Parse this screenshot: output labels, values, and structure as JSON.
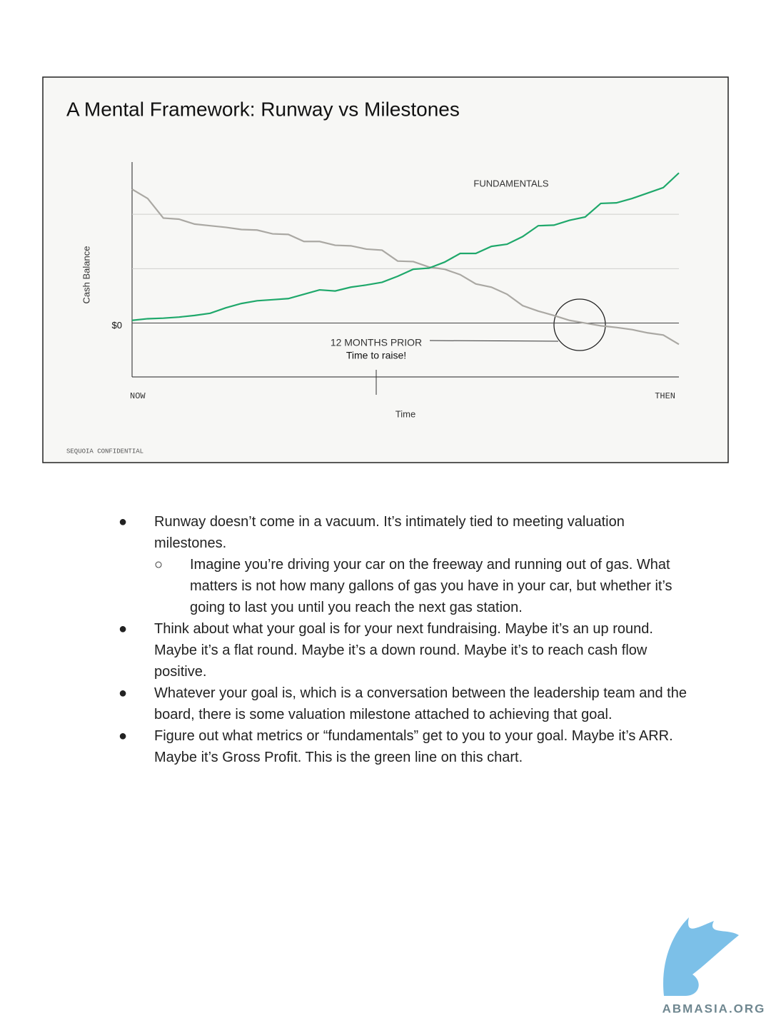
{
  "chart_data": {
    "type": "line",
    "title": "A Mental Framework: Runway vs Milestones",
    "ylabel": "Cash Balance",
    "xlabel": "Time",
    "footer": "SEQUOIA CONFIDENTIAL",
    "x": [
      0,
      1,
      2,
      3,
      4,
      5,
      6,
      7,
      8,
      9,
      10,
      11,
      12,
      13,
      14,
      15,
      16,
      17,
      18,
      19,
      20,
      21,
      22,
      23,
      24,
      25,
      26,
      27,
      28,
      29,
      30,
      31,
      32,
      33,
      34,
      35
    ],
    "xlim": [
      0,
      35
    ],
    "xticks": [
      {
        "value": 0,
        "label": "NOW"
      },
      {
        "value": 35,
        "label": "THEN"
      }
    ],
    "ylim": [
      -0.99,
      2.96
    ],
    "yticks": [
      {
        "value": 0,
        "label": "$0"
      }
    ],
    "grid": [
      1,
      2
    ],
    "series": [
      {
        "color": "#aaa8a3",
        "values": [
          2.46,
          2.29,
          1.93,
          1.91,
          1.82,
          1.79,
          1.76,
          1.72,
          1.71,
          1.64,
          1.63,
          1.5,
          1.5,
          1.43,
          1.42,
          1.36,
          1.34,
          1.14,
          1.13,
          1.03,
          0.99,
          0.89,
          0.72,
          0.66,
          0.53,
          0.32,
          0.22,
          0.14,
          0.05,
          0,
          -0.05,
          -0.08,
          -0.12,
          -0.18,
          -0.22,
          -0.39
        ]
      },
      {
        "name": "FUNDAMENTALS",
        "color": "#1fa86b",
        "values": [
          0.05,
          0.08,
          0.09,
          0.11,
          0.14,
          0.18,
          0.28,
          0.36,
          0.41,
          0.43,
          0.45,
          0.53,
          0.61,
          0.59,
          0.66,
          0.7,
          0.75,
          0.86,
          0.99,
          1.01,
          1.12,
          1.28,
          1.28,
          1.41,
          1.45,
          1.59,
          1.79,
          1.8,
          1.89,
          1.95,
          2.2,
          2.21,
          2.29,
          2.39,
          2.49,
          2.76
        ]
      }
    ],
    "annotation": {
      "text": "12 MONTHS PRIOR",
      "subtext": "Time to raise!"
    }
  },
  "document": {
    "bullets": [
      {
        "text": "Runway doesn’t come in a vacuum. It’s intimately tied to meeting valuation milestones.",
        "sub": [
          "Imagine you’re driving your car on the freeway and running out of gas. What matters is not how many gallons of gas you have in your car, but whether it’s going to last you until you reach the next gas station."
        ]
      },
      {
        "text": "Think about what your goal is for your next fundraising. Maybe it’s an up round. Maybe it’s a flat round. Maybe it’s a down round. Maybe it’s to reach cash flow positive.",
        "sub": []
      },
      {
        "text": "Whatever your goal is, which is a conversation between the leadership team and the board, there is some valuation milestone attached to achieving that goal.",
        "sub": []
      },
      {
        "text": "Figure out what metrics or “fundamentals” get to you to your goal. Maybe it’s ARR. Maybe it’s Gross Profit. This is the green line on this chart.",
        "sub": []
      }
    ],
    "watermark": "ABMASIA.ORG"
  }
}
